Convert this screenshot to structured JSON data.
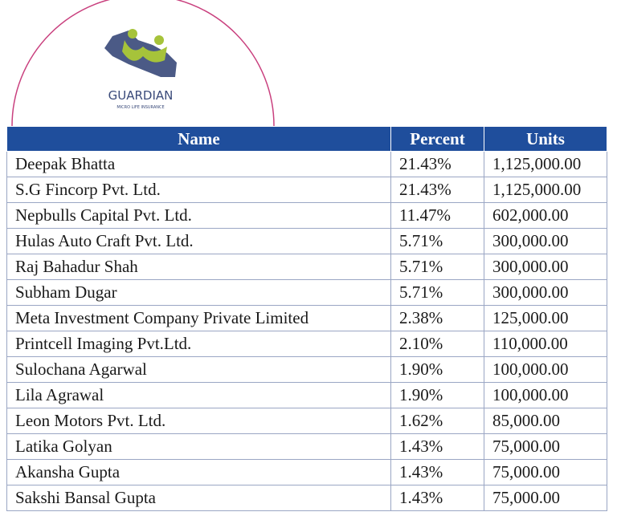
{
  "logo": {
    "title": "GUARDIAN",
    "subtitle": "MICRO LIFE INSURANCE"
  },
  "table": {
    "header": [
      "Name",
      "Percent",
      "Units"
    ],
    "rows": [
      [
        "Deepak Bhatta",
        "21.43%",
        "1,125,000.00"
      ],
      [
        "S.G Fincorp Pvt. Ltd.",
        "21.43%",
        "1,125,000.00"
      ],
      [
        "Nepbulls Capital Pvt. Ltd.",
        "11.47%",
        "602,000.00"
      ],
      [
        "Hulas Auto Craft Pvt. Ltd.",
        "5.71%",
        "300,000.00"
      ],
      [
        "Raj Bahadur Shah",
        "5.71%",
        "300,000.00"
      ],
      [
        "Subham Dugar",
        "5.71%",
        "300,000.00"
      ],
      [
        "Meta Investment Company Private Limited",
        "2.38%",
        "125,000.00"
      ],
      [
        "Printcell Imaging Pvt.Ltd.",
        "2.10%",
        "110,000.00"
      ],
      [
        "Sulochana Agarwal",
        "1.90%",
        "100,000.00"
      ],
      [
        "Lila Agrawal",
        "1.90%",
        "100,000.00"
      ],
      [
        "Leon Motors Pvt. Ltd.",
        "1.62%",
        "85,000.00"
      ],
      [
        "Latika Golyan",
        "1.43%",
        "75,000.00"
      ],
      [
        "Akansha Gupta",
        "1.43%",
        "75,000.00"
      ],
      [
        "Sakshi Bansal Gupta",
        "1.43%",
        "75,000.00"
      ]
    ]
  }
}
